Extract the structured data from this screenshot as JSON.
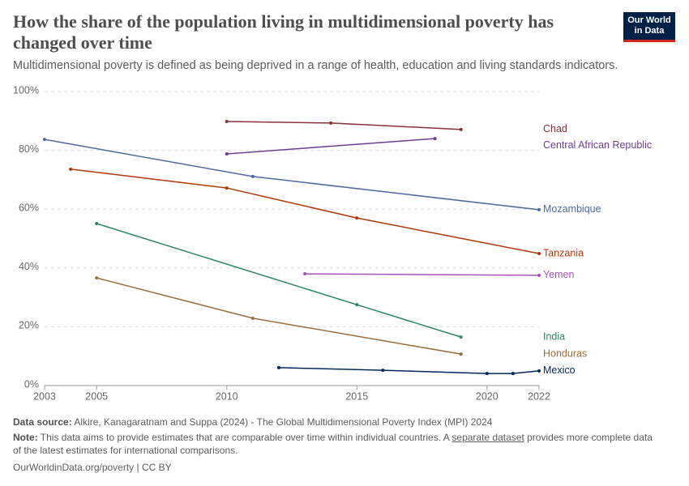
{
  "chart_data": {
    "type": "line",
    "title": "How the share of the population living in multidimensional poverty has changed over time",
    "subtitle": "Multidimensional poverty is defined as being deprived in a range of health, education and living standards indicators.",
    "logo": [
      "Our World",
      "in Data"
    ],
    "series": [
      {
        "name": "Chad",
        "color": "#883039",
        "x": [
          2010,
          2014,
          2019
        ],
        "values": [
          89.8,
          89.3,
          87.1
        ]
      },
      {
        "name": "Central African Republic",
        "color": "#6d3e91",
        "x": [
          2010,
          2018
        ],
        "values": [
          78.8,
          84.0
        ]
      },
      {
        "name": "Mozambique",
        "color": "#4c6a9c",
        "x": [
          2003,
          2011,
          2022
        ],
        "values": [
          83.7,
          71.1,
          59.8
        ]
      },
      {
        "name": "Tanzania",
        "color": "#b13507",
        "x": [
          2004,
          2010,
          2015,
          2022
        ],
        "values": [
          73.6,
          67.2,
          57.0,
          44.9
        ]
      },
      {
        "name": "Yemen",
        "color": "#a652ba",
        "x": [
          2013,
          2022
        ],
        "values": [
          38.0,
          37.5
        ]
      },
      {
        "name": "India",
        "color": "#2c8465",
        "x": [
          2005,
          2015,
          2019
        ],
        "values": [
          55.1,
          27.5,
          16.5
        ]
      },
      {
        "name": "Honduras",
        "color": "#996d39",
        "x": [
          2005,
          2011,
          2019
        ],
        "values": [
          36.6,
          22.9,
          10.7
        ]
      },
      {
        "name": "Mexico",
        "color": "#00295b",
        "x": [
          2012,
          2016,
          2020,
          2021,
          2022
        ],
        "values": [
          6.1,
          5.2,
          4.1,
          4.1,
          5.0
        ]
      }
    ],
    "xlim": [
      2003,
      2022
    ],
    "xticks": [
      2003,
      2005,
      2010,
      2015,
      2020,
      2022
    ],
    "ylim": [
      0,
      100
    ],
    "yticks": [
      {
        "value": 0,
        "label": "0%"
      },
      {
        "value": 20,
        "label": "20%"
      },
      {
        "value": 40,
        "label": "40%"
      },
      {
        "value": 60,
        "label": "60%"
      },
      {
        "value": 80,
        "label": "80%"
      },
      {
        "value": 100,
        "label": "100%"
      }
    ],
    "grid": true,
    "source_label": "Data source:",
    "source": "Alkire, Kanagaratnam and Suppa (2024) - The Global Multidimensional Poverty Index (MPI) 2024",
    "note_label": "Note:",
    "note": [
      "This data aims to provide estimates that are comparable over time within individual countries. A ",
      "separate dataset",
      " provides more complete data of the latest estimates for international comparisons."
    ],
    "footer": "OurWorldinData.org/poverty | CC BY"
  }
}
